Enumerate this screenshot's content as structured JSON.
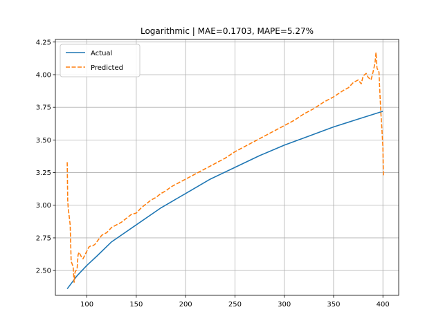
{
  "chart_data": {
    "type": "line",
    "title": "Logarithmic | MAE=0.1703, MAPE=5.27%",
    "xlabel": "",
    "ylabel": "",
    "xlim": [
      68,
      416
    ],
    "ylim": [
      2.31,
      4.27
    ],
    "xticks": [
      100,
      150,
      200,
      250,
      300,
      350,
      400
    ],
    "yticks": [
      2.5,
      2.75,
      3.0,
      3.25,
      3.5,
      3.75,
      4.0,
      4.25
    ],
    "xtick_labels": [
      "100",
      "150",
      "200",
      "250",
      "300",
      "350",
      "400"
    ],
    "ytick_labels": [
      "2.50",
      "2.75",
      "3.00",
      "3.25",
      "3.50",
      "3.75",
      "4.00",
      "4.25"
    ],
    "grid": true,
    "legend": "upper left",
    "series": [
      {
        "name": "Actual",
        "color": "#1f77b4",
        "style": "solid",
        "x": [
          80,
          90,
          100,
          110,
          125,
          150,
          175,
          200,
          225,
          250,
          275,
          300,
          325,
          350,
          375,
          400
        ],
        "y": [
          2.36,
          2.46,
          2.54,
          2.61,
          2.72,
          2.85,
          2.98,
          3.09,
          3.2,
          3.29,
          3.38,
          3.46,
          3.53,
          3.6,
          3.66,
          3.72
        ]
      },
      {
        "name": "Predicted",
        "color": "#ff7f0e",
        "style": "dashed",
        "x": [
          80,
          80.5,
          81,
          83,
          84,
          86,
          87,
          88,
          90,
          91,
          92,
          94,
          96,
          98,
          100,
          102,
          104,
          106,
          108,
          110,
          115,
          120,
          125,
          130,
          135,
          140,
          145,
          150,
          155,
          160,
          165,
          170,
          175,
          180,
          185,
          190,
          195,
          200,
          210,
          220,
          230,
          240,
          250,
          260,
          270,
          280,
          290,
          300,
          310,
          320,
          330,
          340,
          350,
          360,
          365,
          370,
          375,
          378,
          380,
          383,
          385,
          388,
          390,
          392,
          393,
          394,
          396,
          397,
          398,
          399,
          400,
          400.5
        ],
        "y": [
          3.33,
          3.04,
          2.98,
          2.85,
          2.57,
          2.53,
          2.41,
          2.49,
          2.51,
          2.62,
          2.64,
          2.61,
          2.59,
          2.62,
          2.65,
          2.68,
          2.69,
          2.69,
          2.7,
          2.72,
          2.77,
          2.79,
          2.83,
          2.85,
          2.87,
          2.9,
          2.93,
          2.94,
          2.98,
          3.01,
          3.04,
          3.06,
          3.09,
          3.11,
          3.14,
          3.16,
          3.18,
          3.2,
          3.24,
          3.28,
          3.32,
          3.36,
          3.41,
          3.45,
          3.49,
          3.53,
          3.57,
          3.61,
          3.65,
          3.7,
          3.74,
          3.79,
          3.83,
          3.88,
          3.9,
          3.94,
          3.96,
          3.93,
          3.99,
          4.01,
          3.98,
          3.96,
          4.02,
          4.09,
          4.17,
          4.05,
          4.02,
          3.85,
          3.7,
          3.58,
          3.45,
          3.22
        ]
      }
    ]
  }
}
